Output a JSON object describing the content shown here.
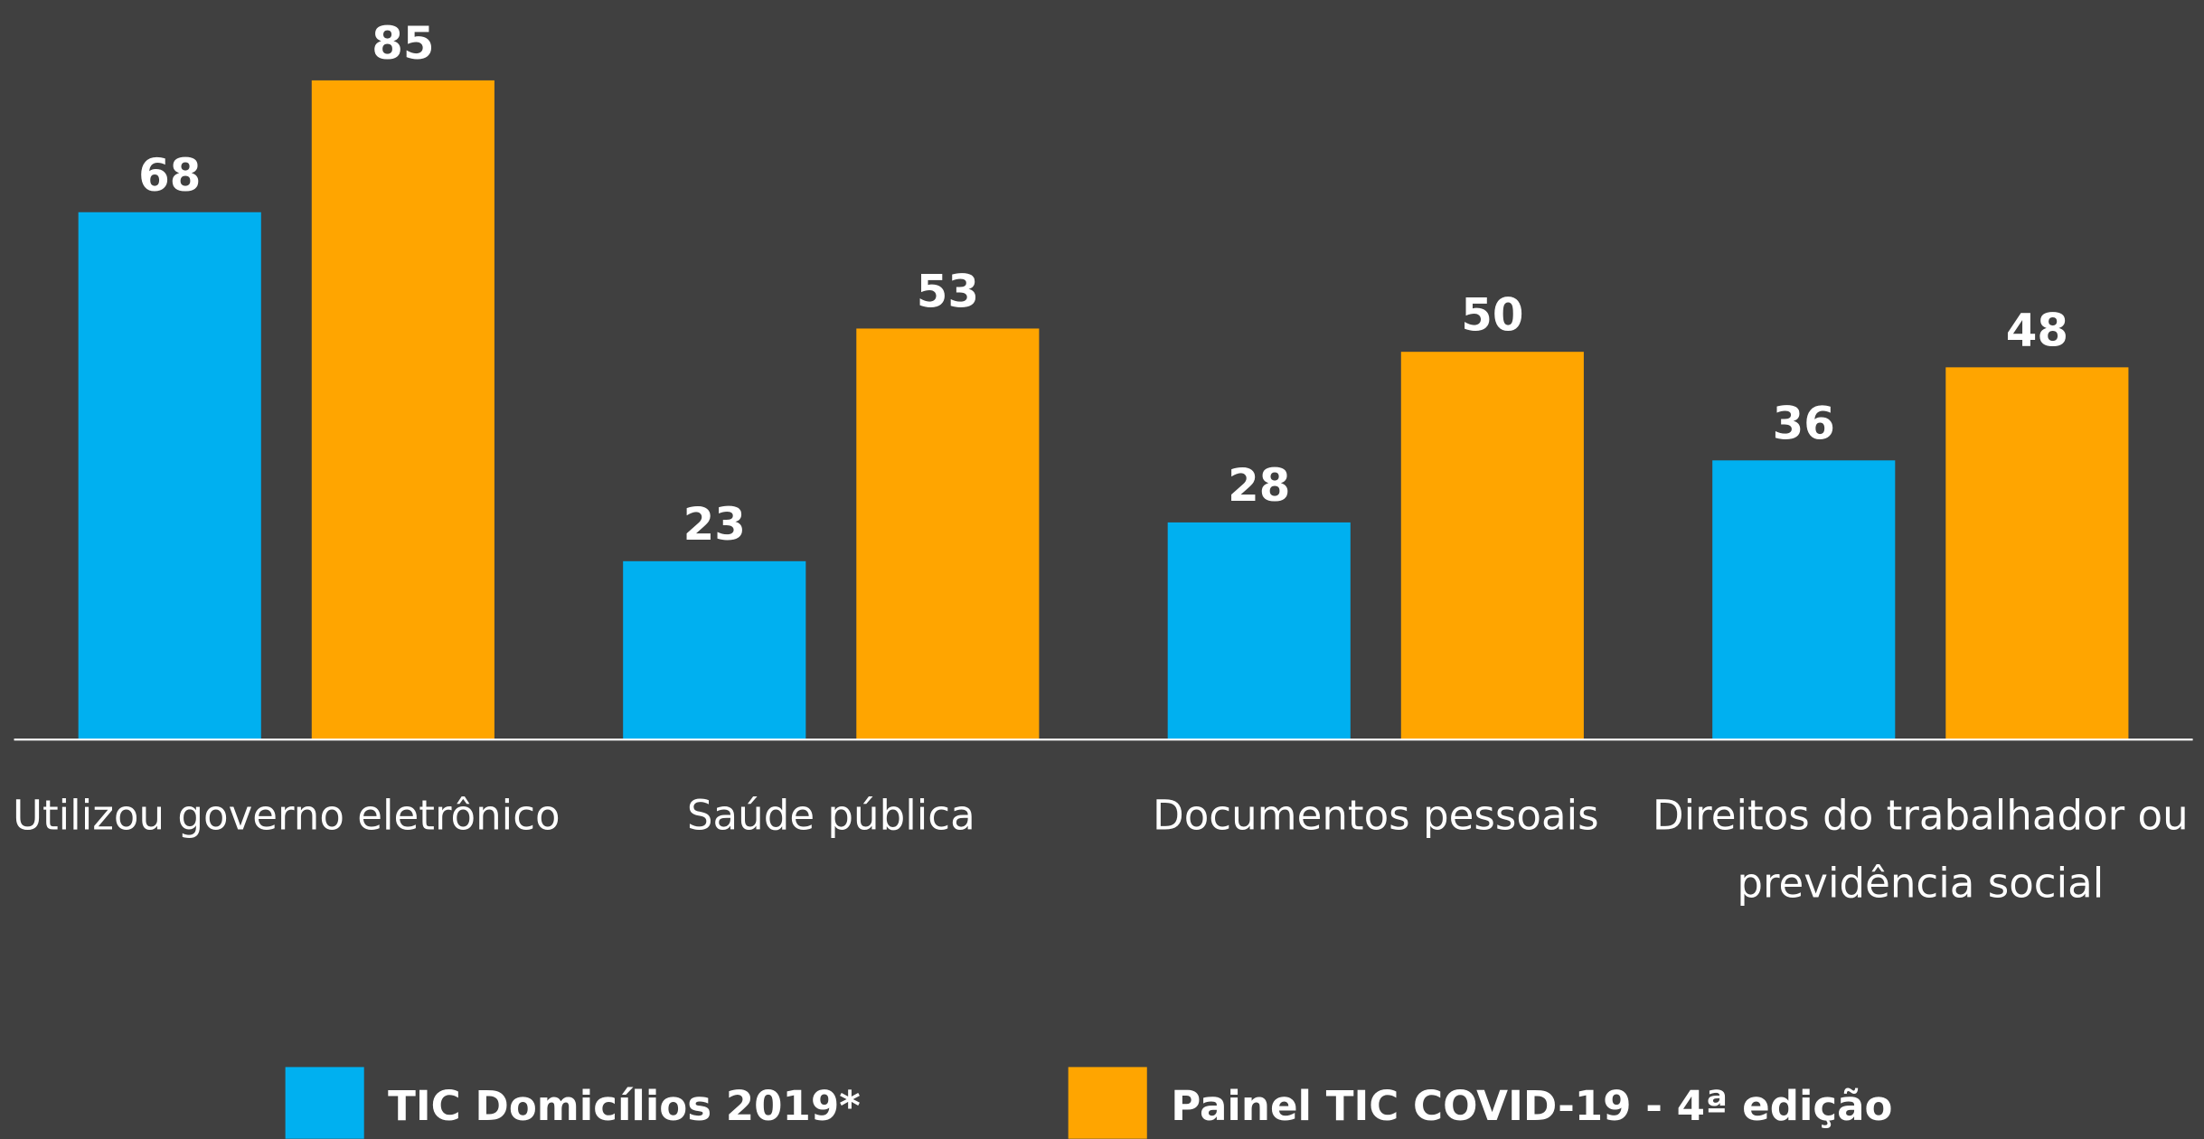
{
  "chart_data": {
    "type": "bar",
    "categories": [
      "Utilizou governo eletrônico",
      "Saúde pública",
      "Documentos pessoais",
      "Direitos do trabalhador ou previdência social"
    ],
    "series": [
      {
        "name": "TIC Domicílios 2019*",
        "color": "#00b0f0",
        "values": [
          68,
          23,
          28,
          36
        ]
      },
      {
        "name": "Painel TIC COVID-19 - 4ª edição",
        "color": "#ffa500",
        "values": [
          85,
          53,
          50,
          48
        ]
      }
    ],
    "ylim": [
      0,
      85
    ]
  }
}
